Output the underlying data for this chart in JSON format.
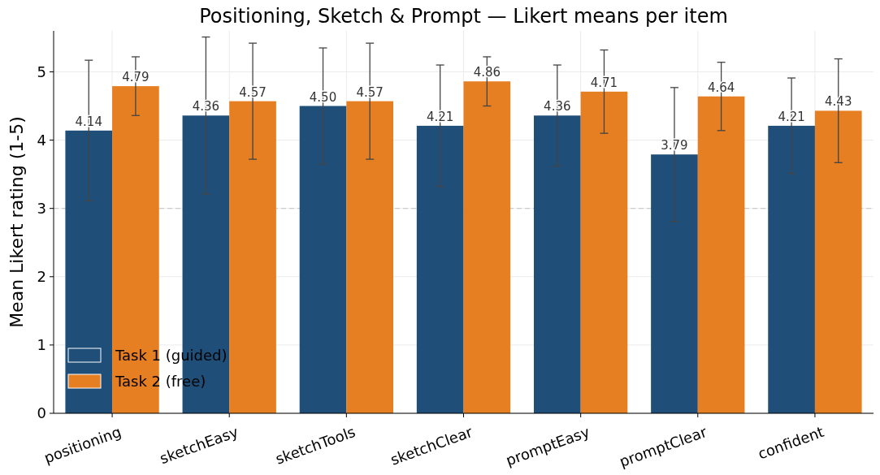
{
  "chart_data": {
    "type": "bar",
    "title": "Positioning, Sketch & Prompt — Likert means per item",
    "ylabel": "Mean Likert rating (1-5)",
    "categories": [
      "positioning",
      "sketchEasy",
      "sketchTools",
      "sketchClear",
      "promptEasy",
      "promptClear",
      "confident"
    ],
    "series": [
      {
        "name": "Task 1 (guided)",
        "color": "#1f4e79",
        "values": [
          4.14,
          4.36,
          4.5,
          4.21,
          4.36,
          3.79,
          4.21
        ],
        "value_labels": [
          "4.14",
          "4.36",
          "4.50",
          "4.21",
          "4.36",
          "3.79",
          "4.21"
        ],
        "errors": [
          1.03,
          1.15,
          0.85,
          0.89,
          0.74,
          0.98,
          0.7
        ]
      },
      {
        "name": "Task 2 (free)",
        "color": "#e67e22",
        "values": [
          4.79,
          4.57,
          4.57,
          4.86,
          4.71,
          4.64,
          4.43
        ],
        "value_labels": [
          "4.79",
          "4.57",
          "4.57",
          "4.86",
          "4.71",
          "4.64",
          "4.43"
        ],
        "errors": [
          0.43,
          0.85,
          0.85,
          0.36,
          0.61,
          0.5,
          0.76
        ]
      }
    ],
    "ylim": [
      0,
      5.6
    ],
    "yticks": [
      0,
      1,
      2,
      3,
      4,
      5
    ],
    "grid": true,
    "legend": "bottom left",
    "ref_lines": [
      {
        "axis": "y",
        "value": 3,
        "color": "#cccccc",
        "line_style": "dashed"
      }
    ]
  }
}
